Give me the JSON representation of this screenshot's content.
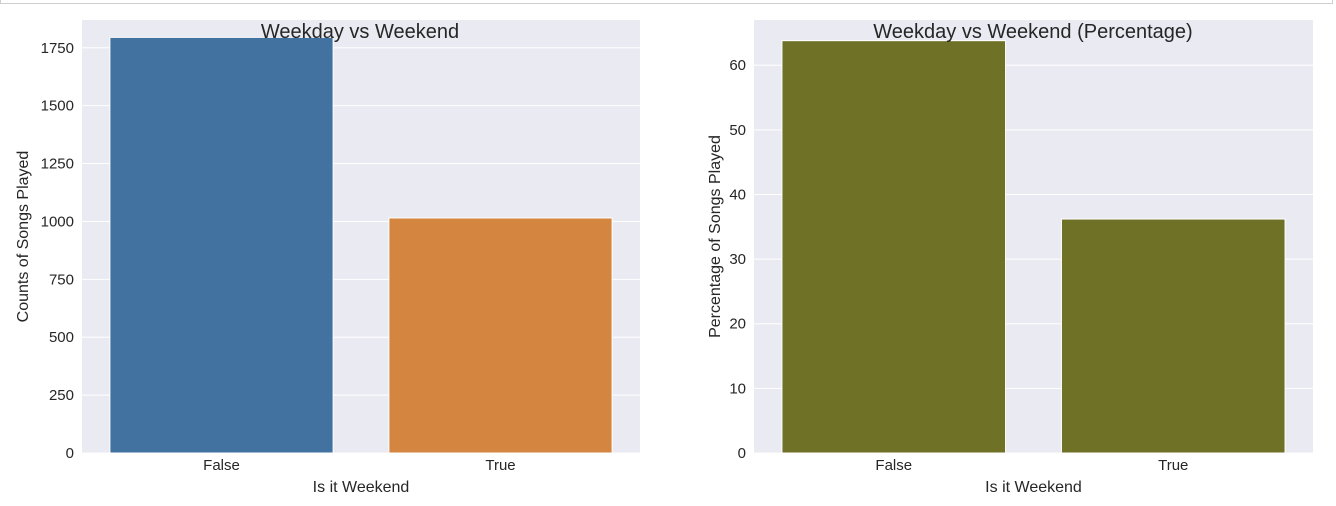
{
  "chart_data": [
    {
      "type": "bar",
      "title": "Weekday vs Weekend",
      "xlabel": "Is it Weekend",
      "ylabel": "Counts of Songs Played",
      "categories": [
        "False",
        "True"
      ],
      "values": [
        1795,
        1015
      ],
      "ylim": [
        0,
        1870
      ],
      "yticks": [
        0,
        250,
        500,
        750,
        1000,
        1250,
        1500,
        1750
      ],
      "colors": [
        "#4272a0",
        "#d48540"
      ],
      "background": "#eaeaf2",
      "grid": true
    },
    {
      "type": "bar",
      "title": "Weekday vs Weekend (Percentage)",
      "xlabel": "Is it Weekend",
      "ylabel": "Percentage of Songs Played",
      "categories": [
        "False",
        "True"
      ],
      "values": [
        63.8,
        36.2
      ],
      "ylim": [
        0,
        67
      ],
      "yticks": [
        0,
        10,
        20,
        30,
        40,
        50,
        60
      ],
      "colors": [
        "#6f7127",
        "#6f7127"
      ],
      "background": "#eaeaf2",
      "grid": true
    }
  ]
}
